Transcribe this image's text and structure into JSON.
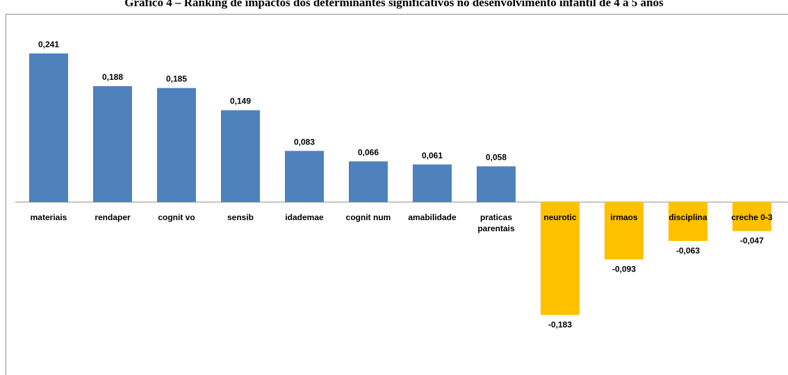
{
  "chart_data": {
    "type": "bar",
    "title": "Gráfico 4 – Ranking de impactos dos determinantes significativos no desenvolvimento infantil de 4 a 5 anos",
    "categories": [
      "materiais",
      "rendaper",
      "cognit vo",
      "sensib",
      "idademae",
      "cognit num",
      "amabilidade",
      "praticas parentais",
      "neurotic",
      "irmaos",
      "disciplina",
      "creche 0-3"
    ],
    "values": [
      0.241,
      0.188,
      0.185,
      0.149,
      0.083,
      0.066,
      0.061,
      0.058,
      -0.183,
      -0.093,
      -0.063,
      -0.047
    ],
    "value_labels": [
      "0,241",
      "0,188",
      "0,185",
      "0,149",
      "0,083",
      "0,066",
      "0,061",
      "0,058",
      "-0,183",
      "-0,093",
      "-0,063",
      "-0,047"
    ],
    "colors": {
      "positive": "#4f81bd",
      "negative": "#ffc000"
    },
    "xlabel": "",
    "ylabel": "",
    "grid": false,
    "legend": "none"
  }
}
